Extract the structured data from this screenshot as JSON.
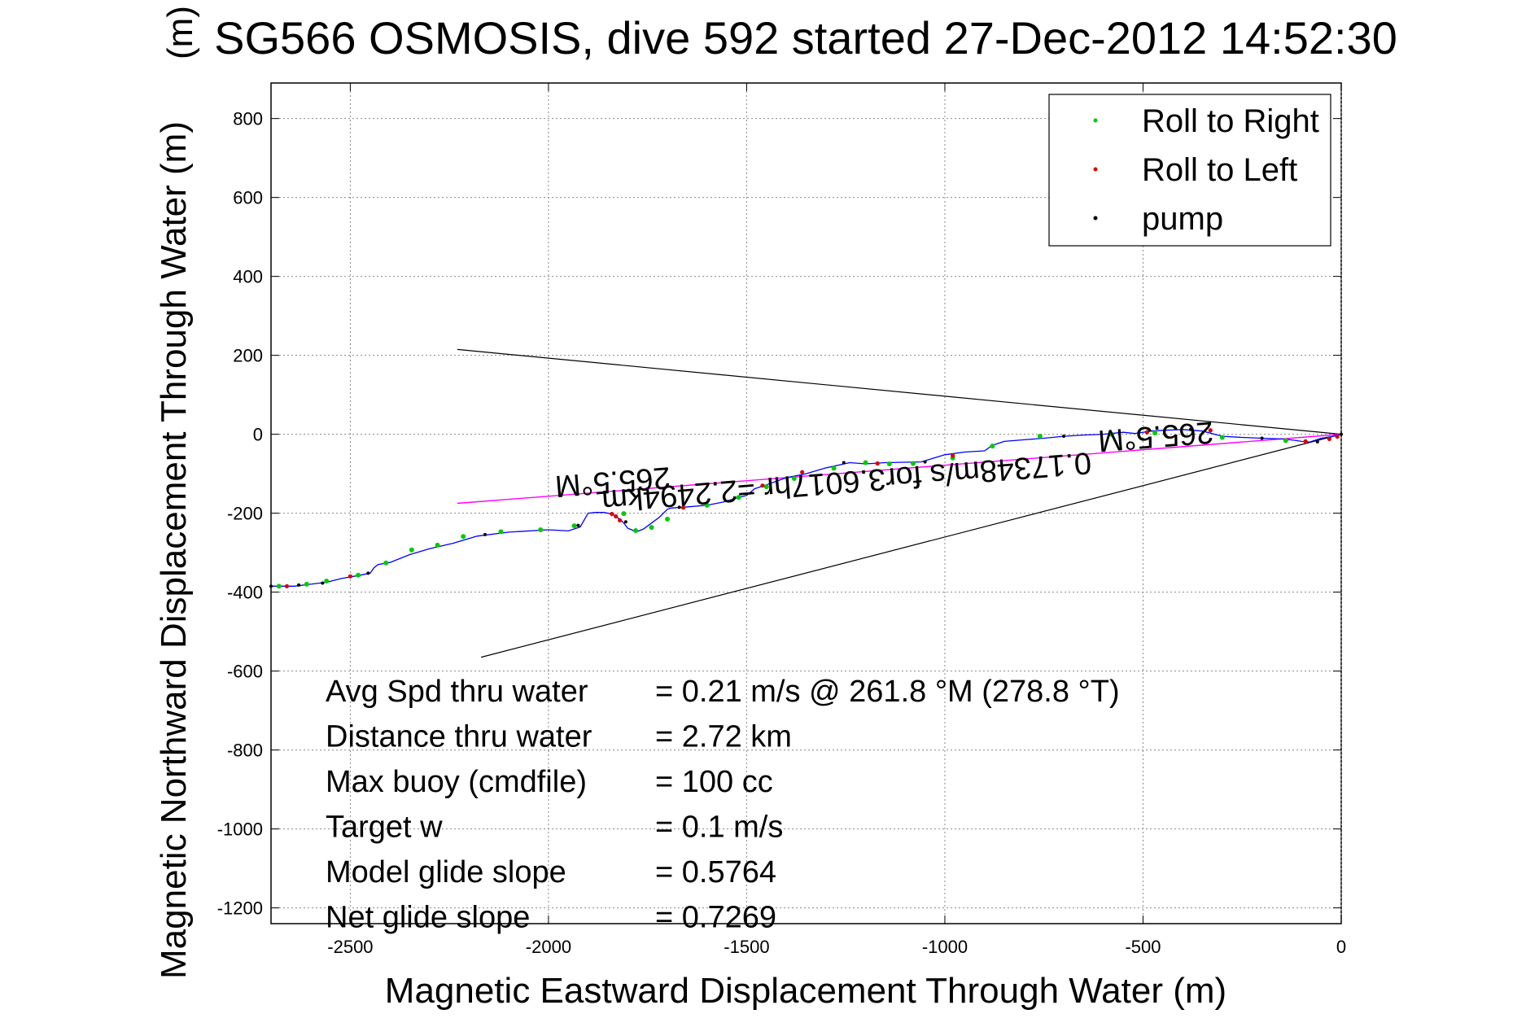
{
  "chart_data": {
    "type": "line",
    "title": "SG566 OSMOSIS, dive 592 started 27-Dec-2012 14:52:30",
    "title_overlap_glyph": "(m)",
    "xlabel": "Magnetic Eastward Displacement Through Water (m)",
    "ylabel": "Magnetic Northward Displacement Through Water (m)",
    "xlim": [
      -2700,
      0
    ],
    "ylim": [
      -1240,
      890
    ],
    "xticks": [
      -2500,
      -2000,
      -1500,
      -1000,
      -500,
      0
    ],
    "yticks": [
      800,
      600,
      400,
      200,
      0,
      -200,
      -400,
      -600,
      -800,
      -1000,
      -1200
    ],
    "grid": true,
    "legend_position": "top-right",
    "legend": [
      {
        "label": "Roll to Right",
        "color": "#00cc00"
      },
      {
        "label": "Roll to Left",
        "color": "#dd0000"
      },
      {
        "label": "pump",
        "color": "#000000"
      }
    ],
    "track": {
      "color": "#0000ff",
      "x": [
        -2700,
        -2640,
        -2600,
        -2560,
        -2520,
        -2480,
        -2450,
        -2440,
        -2430,
        -2400,
        -2350,
        -2300,
        -2240,
        -2180,
        -2100,
        -2000,
        -1950,
        -1920,
        -1900,
        -1880,
        -1860,
        -1840,
        -1820,
        -1810,
        -1800,
        -1790,
        -1780,
        -1760,
        -1740,
        -1720,
        -1700,
        -1690,
        -1660,
        -1600,
        -1560,
        -1520,
        -1500,
        -1480,
        -1450,
        -1400,
        -1350,
        -1300,
        -1240,
        -1200,
        -1150,
        -1060,
        -1000,
        -950,
        -900,
        -880,
        -850,
        -800,
        -750,
        -700,
        -650,
        -600,
        -550,
        -520,
        -480,
        -450,
        -400,
        -350,
        -300,
        -250,
        -200,
        -150,
        -120,
        -100,
        -80,
        -50,
        -20,
        0
      ],
      "y": [
        -385,
        -385,
        -380,
        -375,
        -365,
        -358,
        -352,
        -338,
        -330,
        -325,
        -305,
        -290,
        -276,
        -258,
        -248,
        -242,
        -245,
        -235,
        -200,
        -198,
        -198,
        -202,
        -215,
        -225,
        -238,
        -242,
        -248,
        -240,
        -225,
        -210,
        -190,
        -187,
        -185,
        -180,
        -172,
        -160,
        -155,
        -138,
        -128,
        -110,
        -100,
        -85,
        -72,
        -75,
        -72,
        -70,
        -52,
        -45,
        -42,
        -28,
        -18,
        -14,
        -10,
        -5,
        -2,
        0,
        5,
        2,
        8,
        10,
        12,
        8,
        -5,
        -8,
        -10,
        -12,
        -15,
        -18,
        -20,
        -10,
        -5,
        0
      ]
    },
    "roll_right_points": {
      "color": "#00cc00",
      "x": [
        -2680,
        -2610,
        -2560,
        -2480,
        -2410,
        -2345,
        -2280,
        -2215,
        -2120,
        -2020,
        -1935,
        -1810,
        -1780,
        -1740,
        -1700,
        -1600,
        -1520,
        -1450,
        -1380,
        -1280,
        -1200,
        -1140,
        -1080,
        -980,
        -880,
        -760,
        -580,
        -470,
        -300,
        -140
      ],
      "y": [
        -385,
        -380,
        -372,
        -357,
        -326,
        -293,
        -281,
        -259,
        -247,
        -242,
        -232,
        -201,
        -244,
        -236,
        -215,
        -180,
        -160,
        -133,
        -112,
        -86,
        -72,
        -75,
        -74,
        -60,
        -30,
        -5,
        0,
        3,
        -8,
        -16
      ]
    },
    "roll_left_points": {
      "color": "#dd0000",
      "x": [
        -2660,
        -2500,
        -1840,
        -1830,
        -1820,
        -1660,
        -1460,
        -1360,
        -1170,
        -980,
        -490,
        -330,
        -90,
        -30,
        -10
      ],
      "y": [
        -385,
        -360,
        -202,
        -208,
        -218,
        -186,
        -130,
        -96,
        -74,
        -54,
        5,
        10,
        -18,
        -12,
        -6
      ]
    },
    "pump_points": {
      "color": "#000000",
      "x": [
        -2700,
        -2630,
        -2570,
        -2455,
        -2160,
        -1925,
        -1805,
        -1670,
        -1255,
        -1050,
        -700,
        -380,
        -200,
        -60,
        0
      ],
      "y": [
        -385,
        -382,
        -377,
        -352,
        -254,
        -231,
        -222,
        -185,
        -72,
        -70,
        -5,
        12,
        -10,
        -19,
        0
      ]
    },
    "cone_lines": {
      "color": "#000000",
      "apex": [
        0,
        0
      ],
      "upper_end": [
        -2230,
        215
      ],
      "lower_end": [
        -2170,
        -565
      ]
    },
    "heading_line": {
      "color": "#ff00ff",
      "from": [
        0,
        0
      ],
      "to": [
        -2230,
        -175
      ]
    },
    "annotations": [
      {
        "text": "265.5°M",
        "x": -1840,
        "y": -95,
        "rotation": 175.5
      },
      {
        "text": "0.17348m/s for3.6017hr =2.2494km",
        "x": -1250,
        "y": -95,
        "rotation": 175.5
      },
      {
        "text": "265.5°M",
        "x": -470,
        "y": 20,
        "rotation": 175.5
      }
    ],
    "stats": [
      {
        "label": "Avg Spd thru water",
        "value": "=  0.21 m/s @ 261.8 °M (278.8 °T)"
      },
      {
        "label": "Distance thru water",
        "value": "=  2.72 km"
      },
      {
        "label": "Max buoy (cmdfile)",
        "value": "= 100 cc"
      },
      {
        "label": "Target w",
        "value": "= 0.1 m/s"
      },
      {
        "label": "Model glide slope",
        "value": "= 0.5764"
      },
      {
        "label": "Net glide slope",
        "value": "= 0.7269"
      }
    ]
  }
}
